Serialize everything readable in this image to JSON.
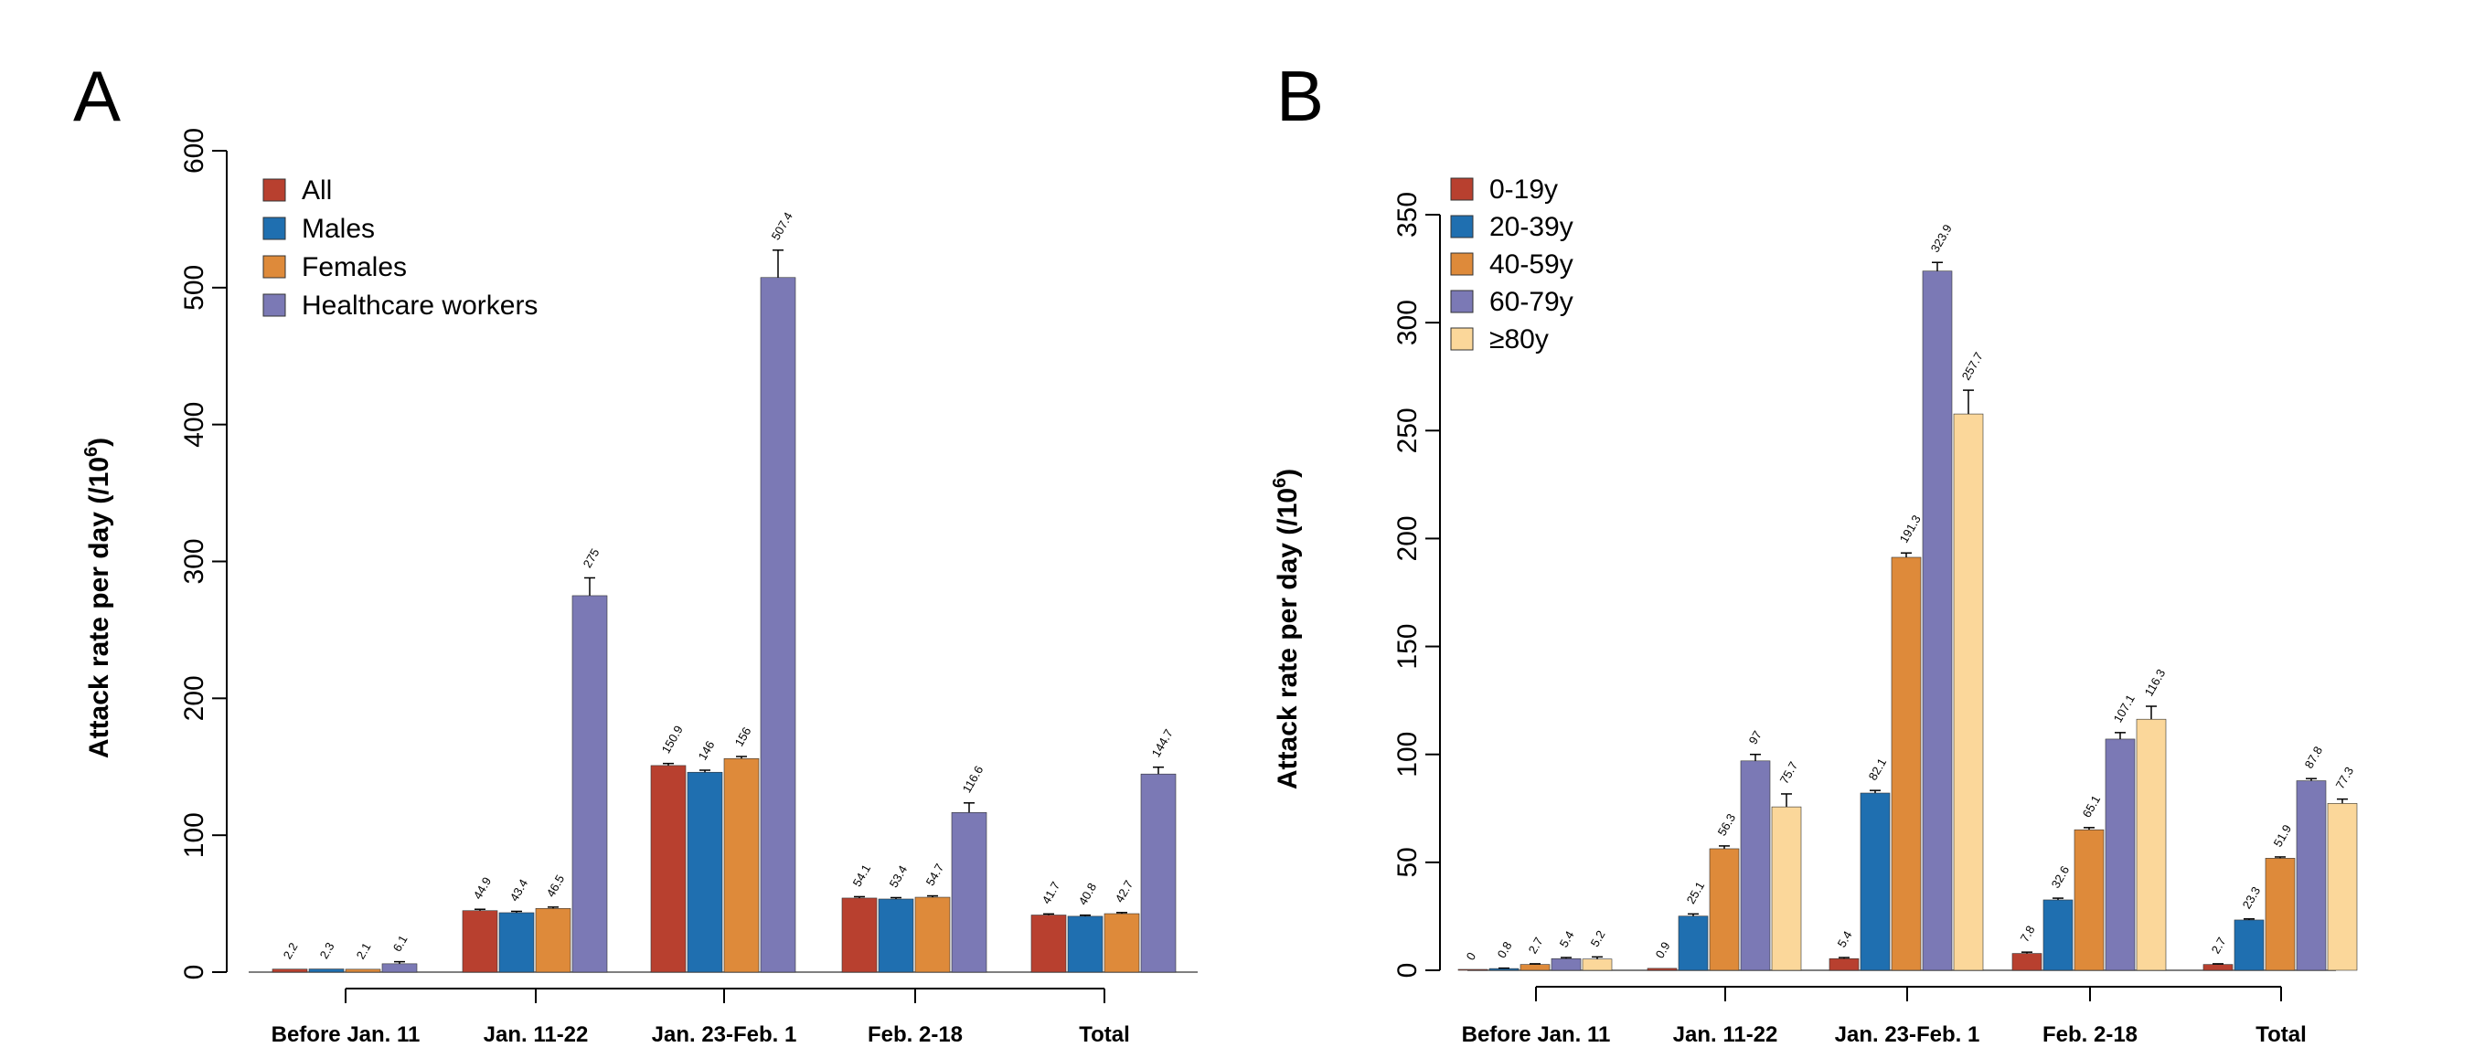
{
  "chart_data": [
    {
      "panel": "A",
      "type": "bar",
      "ylabel": "Attack rate per day (/10",
      "ylabel_sup": "6",
      "ylabel_close": ")",
      "ylim": [
        0,
        600
      ],
      "yticks": [
        "0",
        "100",
        "200",
        "300",
        "400",
        "500",
        "600"
      ],
      "categories": [
        "Before Jan. 11",
        "Jan. 11-22",
        "Jan. 23-Feb. 1",
        "Feb. 2-18",
        "Total"
      ],
      "legend_position": "top-left",
      "series": [
        {
          "name": "All",
          "color": "#b8402f",
          "values": [
            2.2,
            44.9,
            150.9,
            54.1,
            41.7
          ],
          "labels": [
            "2.2",
            "44.9",
            "150.9",
            "54.1",
            "41.7"
          ],
          "err": [
            0,
            1,
            1.5,
            1,
            0.8
          ]
        },
        {
          "name": "Males",
          "color": "#1f6fb0",
          "values": [
            2.3,
            43.4,
            146,
            53.4,
            40.8
          ],
          "labels": [
            "2.3",
            "43.4",
            "146",
            "53.4",
            "40.8"
          ],
          "err": [
            0,
            1,
            1.5,
            1,
            0.8
          ]
        },
        {
          "name": "Females",
          "color": "#de8a3a",
          "values": [
            2.1,
            46.5,
            156,
            54.7,
            42.7
          ],
          "labels": [
            "2.1",
            "46.5",
            "156",
            "54.7",
            "42.7"
          ],
          "err": [
            0,
            1,
            1.5,
            1,
            0.8
          ]
        },
        {
          "name": "Healthcare workers",
          "color": "#7b79b5",
          "values": [
            6.1,
            275,
            507.4,
            116.6,
            144.7
          ],
          "labels": [
            "6.1",
            "275",
            "507.4",
            "116.6",
            "144.7"
          ],
          "err": [
            1.5,
            13,
            20,
            7,
            5
          ]
        }
      ]
    },
    {
      "panel": "B",
      "type": "bar",
      "ylabel": "Attack rate per day (/10",
      "ylabel_sup": "6",
      "ylabel_close": ")",
      "ylim": [
        0,
        350
      ],
      "yticks": [
        "0",
        "50",
        "100",
        "150",
        "200",
        "250",
        "300",
        "350"
      ],
      "categories": [
        "Before Jan. 11",
        "Jan. 11-22",
        "Jan. 23-Feb. 1",
        "Feb. 2-18",
        "Total"
      ],
      "legend_position": "top-left",
      "series": [
        {
          "name": "0-19y",
          "color": "#b8402f",
          "values": [
            0,
            0.9,
            5.4,
            7.8,
            2.7
          ],
          "labels": [
            "0",
            "0.9",
            "5.4",
            "7.8",
            "2.7"
          ],
          "err": [
            0,
            0,
            0.5,
            0.6,
            0.3
          ]
        },
        {
          "name": "20-39y",
          "color": "#1f6fb0",
          "values": [
            0.8,
            25.1,
            82.1,
            32.6,
            23.3
          ],
          "labels": [
            "0.8",
            "25.1",
            "82.1",
            "32.6",
            "23.3"
          ],
          "err": [
            0.2,
            1,
            1.2,
            0.8,
            0.5
          ]
        },
        {
          "name": "40-59y",
          "color": "#de8a3a",
          "values": [
            2.7,
            56.3,
            191.3,
            65.1,
            51.9
          ],
          "labels": [
            "2.7",
            "56.3",
            "191.3",
            "65.1",
            "51.9"
          ],
          "err": [
            0.3,
            1.3,
            2,
            1,
            0.6
          ]
        },
        {
          "name": "60-79y",
          "color": "#7b79b5",
          "values": [
            5.4,
            97,
            323.9,
            107.1,
            87.8
          ],
          "labels": [
            "5.4",
            "97",
            "323.9",
            "107.1",
            "87.8"
          ],
          "err": [
            0.5,
            3,
            4,
            3,
            1
          ]
        },
        {
          "name": "≥80y",
          "color": "#fbd79a",
          "values": [
            5.2,
            75.7,
            257.7,
            116.3,
            77.3
          ],
          "labels": [
            "5.2",
            "75.7",
            "257.7",
            "116.3",
            "77.3"
          ],
          "err": [
            1,
            6,
            11,
            6,
            2
          ]
        }
      ]
    }
  ]
}
